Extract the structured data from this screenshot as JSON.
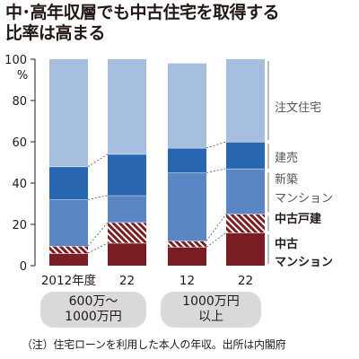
{
  "title": {
    "line1": "中･高年収層でも中古住宅を取得する",
    "line2": "比率は高まる"
  },
  "chart_data": {
    "type": "bar",
    "stacked": true,
    "ylim": [
      0,
      100
    ],
    "yticks": [
      0,
      20,
      40,
      60,
      80,
      100
    ],
    "yunit": "%",
    "categories": [
      "2012年度",
      "22",
      "12",
      "22"
    ],
    "groups": [
      {
        "line1": "600万～",
        "line2": "1000万円"
      },
      {
        "line1": "1000万円",
        "line2": "以上"
      }
    ],
    "series": [
      {
        "name": "中古マンション",
        "values": [
          6,
          11,
          9,
          16
        ],
        "color": "#7b1e23"
      },
      {
        "name": "中古戸建",
        "values": [
          3.5,
          10,
          3,
          9
        ],
        "color": "#7b1e23",
        "pattern": "hatch"
      },
      {
        "name": "新築マンション",
        "values": [
          22.5,
          13,
          33,
          22
        ],
        "color": "#5a86c3"
      },
      {
        "name": "建売",
        "values": [
          16,
          20,
          12,
          13
        ],
        "color": "#2966b0"
      },
      {
        "name": "注文住宅",
        "values": [
          52,
          46,
          41,
          40
        ],
        "color": "#a7bfdf"
      }
    ],
    "legend": [
      {
        "text": "注文住宅",
        "strong": false
      },
      {
        "text": "建売",
        "strong": false
      },
      {
        "text": "新築",
        "strong": false
      },
      {
        "text": "マンション",
        "strong": false
      },
      {
        "text": "中古戸建",
        "strong": true
      },
      {
        "text": "中古",
        "strong": true
      },
      {
        "text": "マンション",
        "strong": true
      }
    ],
    "grid": false,
    "legend_placement": "right"
  },
  "footnote": "（注）住宅ローンを利用した本人の年収。出所は内閣府"
}
